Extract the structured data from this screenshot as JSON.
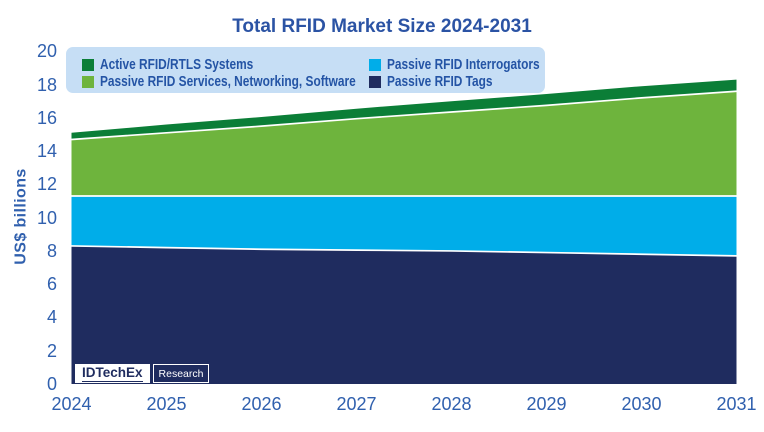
{
  "title": "Total RFID Market Size 2024-2031",
  "y_axis": {
    "label": "US$ billions",
    "ticks": [
      0,
      2,
      4,
      6,
      8,
      10,
      12,
      14,
      16,
      18,
      20
    ],
    "max": 20
  },
  "x_axis": {
    "labels": [
      "2024",
      "2025",
      "2026",
      "2027",
      "2028",
      "2029",
      "2030",
      "2031"
    ]
  },
  "legend": {
    "items": [
      {
        "label": "Active RFID/RTLS Systems",
        "color": "#0b7e37"
      },
      {
        "label": "Passive RFID Interrogators",
        "color": "#00ade9"
      },
      {
        "label": "Passive RFID Services, Networking, Software",
        "color": "#6eb43d"
      },
      {
        "label": "Passive RFID Tags",
        "color": "#1f2c5f"
      }
    ]
  },
  "logo": {
    "brand": "IDTechEx",
    "product": "Research"
  },
  "chart_data": {
    "type": "area",
    "stacked": true,
    "title": "Total RFID Market Size 2024-2031",
    "xlabel": "",
    "ylabel": "US$ billions",
    "ylim": [
      0,
      20
    ],
    "grid": false,
    "legend_position": "top",
    "x": [
      2024,
      2025,
      2026,
      2027,
      2028,
      2029,
      2030,
      2031
    ],
    "series": [
      {
        "name": "Passive RFID Tags",
        "color": "#1f2c5f",
        "values": [
          8.3,
          8.2,
          8.1,
          8.05,
          8.0,
          7.9,
          7.8,
          7.7
        ]
      },
      {
        "name": "Passive RFID Interrogators",
        "color": "#00ade9",
        "values": [
          3.0,
          3.1,
          3.2,
          3.25,
          3.3,
          3.4,
          3.5,
          3.6
        ]
      },
      {
        "name": "Passive RFID Services, Networking, Software",
        "color": "#6eb43d",
        "values": [
          3.4,
          3.8,
          4.2,
          4.65,
          5.05,
          5.45,
          5.9,
          6.3
        ]
      },
      {
        "name": "Active RFID/RTLS Systems",
        "color": "#0b7e37",
        "values": [
          0.4,
          0.5,
          0.55,
          0.6,
          0.65,
          0.68,
          0.7,
          0.7
        ]
      }
    ]
  }
}
